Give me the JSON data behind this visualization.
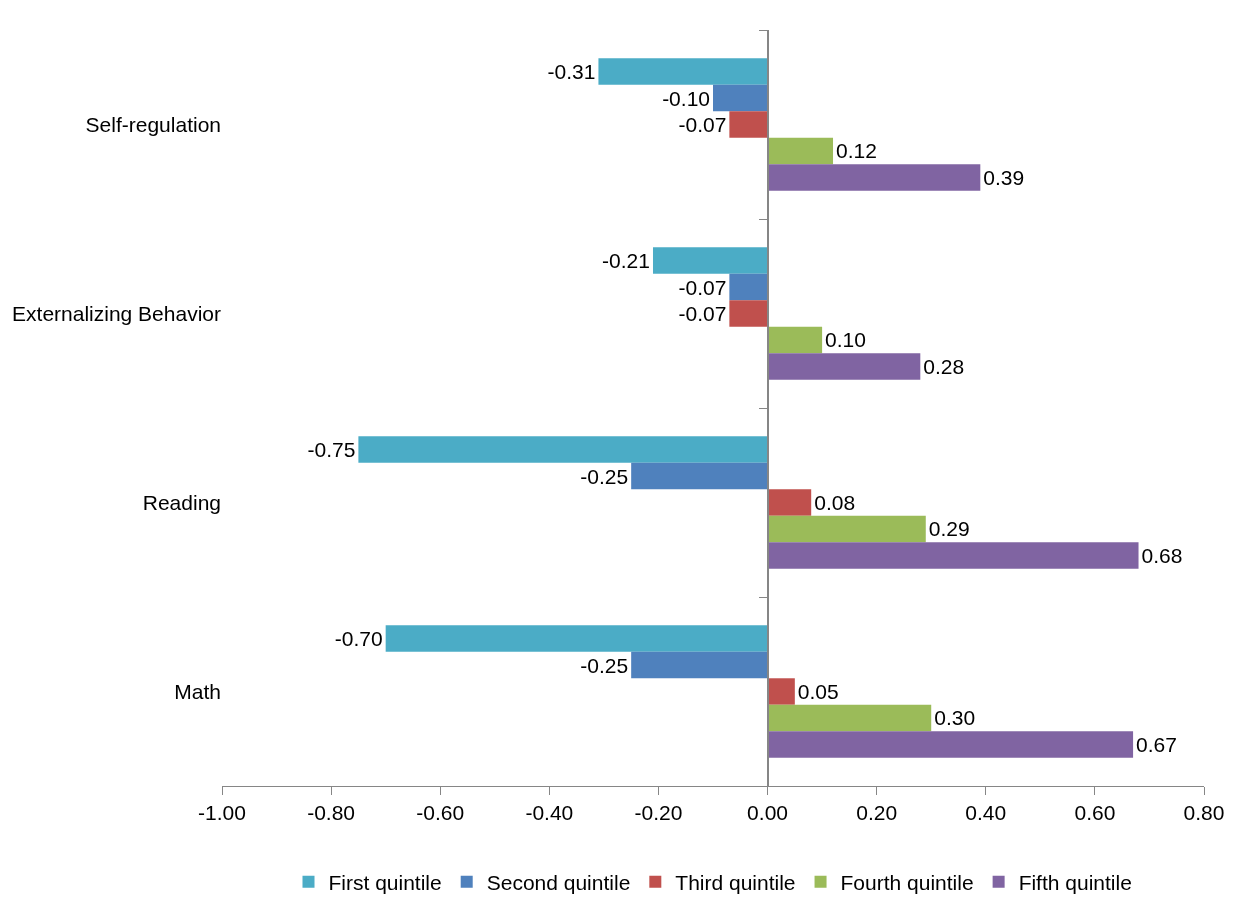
{
  "chart_data": {
    "type": "bar",
    "orientation": "horizontal",
    "categories": [
      "Self-regulation",
      "Externalizing Behavior",
      "Reading",
      "Math"
    ],
    "series": [
      {
        "name": "First quintile",
        "color": "#4bacc6",
        "values": [
          -0.31,
          -0.21,
          -0.75,
          -0.7
        ],
        "value_labels": [
          "-0.31",
          "-0.21",
          "-0.75",
          "-0.70"
        ]
      },
      {
        "name": "Second quintile",
        "color": "#4f81bd",
        "values": [
          -0.1,
          -0.07,
          -0.25,
          -0.25
        ],
        "value_labels": [
          "-0.10",
          "-0.07",
          "-0.25",
          "-0.25"
        ]
      },
      {
        "name": "Third quintile",
        "color": "#c0504d",
        "values": [
          -0.07,
          -0.07,
          0.08,
          0.05
        ],
        "value_labels": [
          "-0.07",
          "-0.07",
          "0.08",
          "0.05"
        ]
      },
      {
        "name": "Fourth quintile",
        "color": "#9bbb59",
        "values": [
          0.12,
          0.1,
          0.29,
          0.3
        ],
        "value_labels": [
          "0.12",
          "0.10",
          "0.29",
          "0.30"
        ]
      },
      {
        "name": "Fifth quintile",
        "color": "#8064a2",
        "values": [
          0.39,
          0.28,
          0.68,
          0.67
        ],
        "value_labels": [
          "0.39",
          "0.28",
          "0.68",
          "0.67"
        ]
      }
    ],
    "xlim": [
      -1.0,
      0.8
    ],
    "xticks": [
      {
        "value": -1.0,
        "label": "-1.00"
      },
      {
        "value": -0.8,
        "label": "-0.80"
      },
      {
        "value": -0.6,
        "label": "-0.60"
      },
      {
        "value": -0.4,
        "label": "-0.40"
      },
      {
        "value": -0.2,
        "label": "-0.20"
      },
      {
        "value": 0,
        "label": "0.00"
      },
      {
        "value": 0.2,
        "label": "0.20"
      },
      {
        "value": 0.4,
        "label": "0.40"
      },
      {
        "value": 0.6,
        "label": "0.60"
      },
      {
        "value": 0.8,
        "label": "0.80"
      }
    ],
    "legend": "bottom"
  }
}
